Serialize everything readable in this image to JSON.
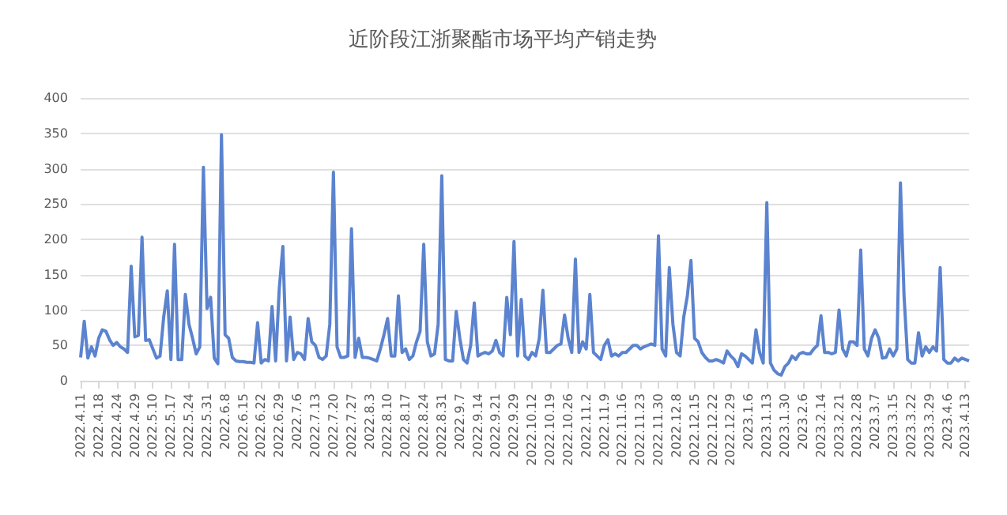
{
  "chart_data": {
    "type": "line",
    "title": "近阶段江浙聚酯市场平均产销走势",
    "categories": [
      "2022.4.11",
      null,
      null,
      null,
      null,
      "2022.4.18",
      null,
      null,
      null,
      null,
      "2022.4.24",
      null,
      null,
      null,
      null,
      "2022.4.29",
      null,
      null,
      null,
      null,
      "2022.5.10",
      null,
      null,
      null,
      null,
      "2022.5.17",
      null,
      null,
      null,
      null,
      "2022.5.24",
      null,
      null,
      null,
      null,
      "2022.5.31",
      null,
      null,
      null,
      null,
      "2022.6.8",
      null,
      null,
      null,
      null,
      "2022.6.15",
      null,
      null,
      null,
      null,
      "2022.6.22",
      null,
      null,
      null,
      null,
      "2022.6.29",
      null,
      null,
      null,
      null,
      "2022.7.6",
      null,
      null,
      null,
      null,
      "2022.7.13",
      null,
      null,
      null,
      null,
      "2022.7.20",
      null,
      null,
      null,
      null,
      "2022.7.27",
      null,
      null,
      null,
      null,
      "2022.8.3",
      null,
      null,
      null,
      null,
      "2022.8.10",
      null,
      null,
      null,
      null,
      "2022.8.17",
      null,
      null,
      null,
      null,
      "2022.8.24",
      null,
      null,
      null,
      null,
      "2022.8.31",
      null,
      null,
      null,
      null,
      "2022.9.7",
      null,
      null,
      null,
      null,
      "2022.9.14",
      null,
      null,
      null,
      null,
      "2022.9.21",
      null,
      null,
      null,
      null,
      "2022.9.29",
      null,
      null,
      null,
      null,
      "2022.10.12",
      null,
      null,
      null,
      null,
      "2022.10.19",
      null,
      null,
      null,
      null,
      "2022.10.26",
      null,
      null,
      null,
      null,
      "2022.11.2",
      null,
      null,
      null,
      null,
      "2022.11.9",
      null,
      null,
      null,
      null,
      "2022.11.16",
      null,
      null,
      null,
      null,
      "2022.11.23",
      null,
      null,
      null,
      null,
      "2022.11.30",
      null,
      null,
      null,
      null,
      "2022.12.8",
      null,
      null,
      null,
      null,
      "2022.12.15",
      null,
      null,
      null,
      null,
      "2022.12.22",
      null,
      null,
      null,
      null,
      "2022.12.29",
      null,
      null,
      null,
      null,
      "2023.1.6",
      null,
      null,
      null,
      null,
      "2023.1.13",
      null,
      null,
      null,
      null,
      "2023.1.30",
      null,
      null,
      null,
      null,
      "2023.2.6",
      null,
      null,
      null,
      null,
      "2023.2.14",
      null,
      null,
      null,
      null,
      "2023.2.21",
      null,
      null,
      null,
      null,
      "2023.2.28",
      null,
      null,
      null,
      null,
      "2023.3.7",
      null,
      null,
      null,
      null,
      "2023.3.15",
      null,
      null,
      null,
      null,
      "2023.3.22",
      null,
      null,
      null,
      null,
      "2023.3.29",
      null,
      null,
      null,
      null,
      "2023.4.6",
      null,
      null,
      null,
      null,
      "2023.4.13",
      null
    ],
    "series": [
      {
        "color": "#5b83cf",
        "values": [
          33,
          84,
          32,
          48,
          35,
          60,
          72,
          70,
          58,
          50,
          54,
          48,
          45,
          40,
          162,
          62,
          64,
          203,
          57,
          58,
          45,
          32,
          35,
          90,
          127,
          30,
          193,
          30,
          30,
          122,
          80,
          60,
          38,
          48,
          302,
          102,
          118,
          32,
          24,
          348,
          65,
          60,
          33,
          28,
          27,
          27,
          26,
          26,
          25,
          82,
          25,
          30,
          28,
          105,
          28,
          130,
          190,
          28,
          90,
          30,
          40,
          38,
          30,
          88,
          55,
          50,
          33,
          30,
          35,
          80,
          295,
          48,
          33,
          33,
          35,
          215,
          33,
          60,
          33,
          33,
          32,
          30,
          28,
          45,
          65,
          88,
          35,
          35,
          120,
          40,
          45,
          30,
          35,
          55,
          70,
          193,
          55,
          35,
          38,
          80,
          290,
          30,
          28,
          28,
          98,
          60,
          30,
          25,
          50,
          110,
          35,
          38,
          40,
          38,
          42,
          57,
          40,
          35,
          118,
          65,
          197,
          35,
          115,
          35,
          30,
          40,
          35,
          60,
          128,
          40,
          40,
          45,
          50,
          52,
          93,
          60,
          40,
          172,
          40,
          55,
          45,
          122,
          40,
          35,
          30,
          50,
          58,
          35,
          38,
          35,
          40,
          40,
          45,
          50,
          50,
          45,
          48,
          50,
          52,
          50,
          205,
          45,
          35,
          160,
          80,
          40,
          35,
          90,
          120,
          170,
          60,
          55,
          40,
          33,
          28,
          28,
          30,
          28,
          25,
          42,
          35,
          30,
          20,
          38,
          35,
          30,
          25,
          72,
          40,
          25,
          252,
          25,
          15,
          10,
          8,
          20,
          25,
          35,
          30,
          38,
          40,
          38,
          38,
          45,
          50,
          92,
          40,
          40,
          38,
          40,
          100,
          45,
          35,
          55,
          55,
          50,
          185,
          45,
          35,
          60,
          72,
          60,
          32,
          33,
          45,
          35,
          45,
          280,
          120,
          30,
          25,
          25,
          68,
          35,
          48,
          40,
          48,
          42,
          160,
          30,
          25,
          25,
          32,
          28,
          32,
          30,
          28
        ]
      }
    ],
    "ylim": [
      0,
      400
    ],
    "yticks": [
      0,
      50,
      100,
      150,
      200,
      250,
      300,
      350,
      400
    ],
    "grid": "y",
    "marker": "none",
    "line_style": "solid"
  }
}
